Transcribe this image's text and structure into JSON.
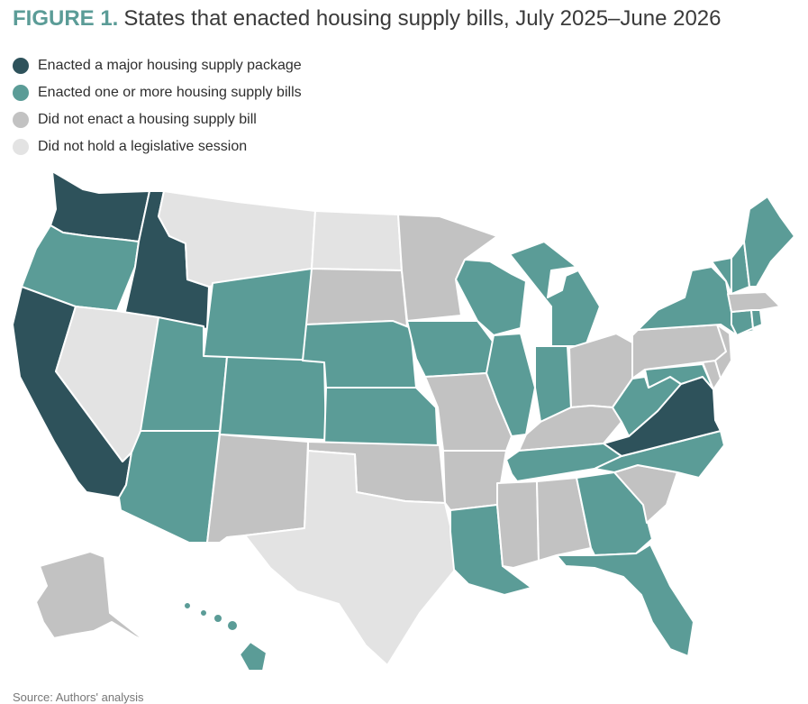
{
  "title": {
    "figure_label": "FIGURE 1.",
    "text": "States that enacted housing supply bills, July 2025–June 2026"
  },
  "legend": [
    {
      "key": "major",
      "label": "Enacted a major housing supply package",
      "color": "#2e525b"
    },
    {
      "key": "bills",
      "label": "Enacted one or more housing supply bills",
      "color": "#5b9c97"
    },
    {
      "key": "none",
      "label": "Did not enact a housing supply bill",
      "color": "#c2c2c2"
    },
    {
      "key": "nosession",
      "label": "Did not hold a legislative session",
      "color": "#e3e3e3"
    }
  ],
  "states": {
    "WA": "major",
    "OR": "bills",
    "CA": "major",
    "ID": "major",
    "NV": "nosession",
    "MT": "nosession",
    "WY": "bills",
    "UT": "bills",
    "AZ": "bills",
    "CO": "bills",
    "NM": "none",
    "ND": "nosession",
    "SD": "none",
    "NE": "bills",
    "KS": "bills",
    "OK": "none",
    "TX": "nosession",
    "MN": "none",
    "IA": "bills",
    "MO": "none",
    "AR": "none",
    "LA": "bills",
    "WI": "bills",
    "IL": "bills",
    "MI": "bills",
    "IN": "bills",
    "OH": "none",
    "KY": "none",
    "TN": "bills",
    "MS": "none",
    "AL": "none",
    "GA": "bills",
    "FL": "bills",
    "SC": "none",
    "NC": "bills",
    "VA": "major",
    "WV": "bills",
    "MD": "bills",
    "DE": "none",
    "NJ": "none",
    "PA": "none",
    "NY": "bills",
    "CT": "bills",
    "RI": "bills",
    "MA": "none",
    "VT": "bills",
    "NH": "bills",
    "ME": "bills",
    "AK": "none",
    "HI": "bills"
  },
  "source": "Source: Authors' analysis"
}
